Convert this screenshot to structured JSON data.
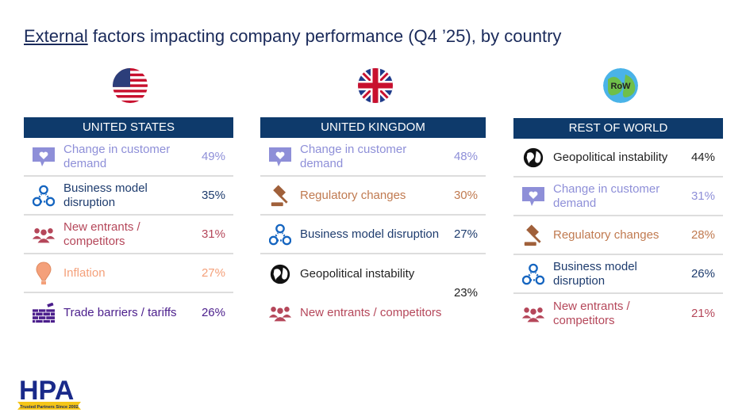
{
  "title": {
    "underlined": "External",
    "rest": " factors impacting company performance (Q4 ’25), by country"
  },
  "columns": [
    {
      "header": "UNITED STATES",
      "flag": "us-flag",
      "rows": [
        {
          "icon": "heart-speech-icon",
          "label": "Change in customer demand",
          "pct": "49%",
          "color": "#8e8fd8"
        },
        {
          "icon": "network-people-icon",
          "label": "Business model disruption",
          "pct": "35%",
          "color": "#1e3c6e"
        },
        {
          "icon": "group-icon",
          "label": "New entrants / competitors",
          "pct": "31%",
          "color": "#b5475a"
        },
        {
          "icon": "balloon-icon",
          "label": "Inflation",
          "pct": "27%",
          "color": "#f4a07a"
        },
        {
          "icon": "brick-wall-icon",
          "label": "Trade barriers / tariffs",
          "pct": "26%",
          "color": "#4b1e8c"
        }
      ]
    },
    {
      "header": "UNITED KINGDOM",
      "flag": "uk-flag",
      "rows": [
        {
          "icon": "heart-speech-icon",
          "label": "Change in customer demand",
          "pct": "48%",
          "color": "#8e8fd8"
        },
        {
          "icon": "gavel-icon",
          "label": "Regulatory changes",
          "pct": "30%",
          "color": "#c07a50"
        },
        {
          "icon": "network-people-icon",
          "label": "Business model disruption",
          "pct": "27%",
          "color": "#1e3c6e"
        },
        {
          "icon": "globe-icon",
          "label": "Geopolitical instability",
          "pct": "23%",
          "color": "#222222"
        },
        {
          "icon": "group-icon",
          "label": "New entrants / competitors",
          "pct": "",
          "color": "#b5475a"
        }
      ]
    },
    {
      "header": "REST OF WORLD",
      "flag": "row-globe",
      "flag_text": "RoW",
      "rows": [
        {
          "icon": "globe-icon",
          "label": "Geopolitical instability",
          "pct": "44%",
          "color": "#222222"
        },
        {
          "icon": "heart-speech-icon",
          "label": "Change in customer demand",
          "pct": "31%",
          "color": "#8e8fd8"
        },
        {
          "icon": "gavel-icon",
          "label": "Regulatory changes",
          "pct": "28%",
          "color": "#c07a50"
        },
        {
          "icon": "network-people-icon",
          "label": "Business model disruption",
          "pct": "26%",
          "color": "#1e3c6e"
        },
        {
          "icon": "group-icon",
          "label": "New entrants / competitors",
          "pct": "21%",
          "color": "#b5475a"
        }
      ]
    }
  ],
  "logo": {
    "name": "HPA",
    "tagline": "Trusted Partners Since 2002"
  }
}
